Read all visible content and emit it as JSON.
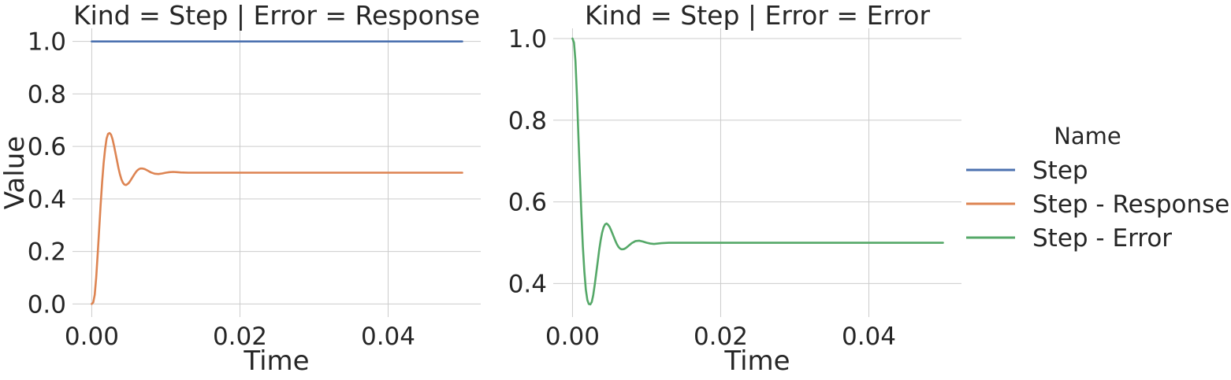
{
  "chart_data": [
    {
      "type": "line",
      "title": "Kind = Step | Error = Response",
      "xlabel": "Time",
      "ylabel": "Value",
      "xlim": [
        -0.0026,
        0.0525
      ],
      "ylim": [
        -0.05,
        1.05
      ],
      "xticks": [
        0.0,
        0.02,
        0.04
      ],
      "xtick_labels": [
        "0.00",
        "0.02",
        "0.04"
      ],
      "yticks": [
        0.0,
        0.2,
        0.4,
        0.6,
        0.8,
        1.0
      ],
      "ytick_labels": [
        "0.0",
        "0.2",
        "0.4",
        "0.6",
        "0.8",
        "1.0"
      ],
      "grid": true,
      "series": [
        {
          "name": "Step",
          "color": "#4c72b0",
          "x": [
            0.0,
            0.05
          ],
          "y": [
            1.0,
            1.0
          ]
        },
        {
          "name": "Step - Response",
          "color": "#dd8452",
          "x": [
            0.0,
            0.0002,
            0.0004,
            0.0006,
            0.0008,
            0.001,
            0.0012,
            0.0014,
            0.0016,
            0.0018,
            0.002,
            0.0022,
            0.0024,
            0.0026,
            0.0028,
            0.003,
            0.0032,
            0.0034,
            0.0036,
            0.0038,
            0.004,
            0.0042,
            0.0044,
            0.0046,
            0.0048,
            0.005,
            0.0052,
            0.0054,
            0.0056,
            0.0058,
            0.006,
            0.0062,
            0.0064,
            0.0066,
            0.0068,
            0.007,
            0.0072,
            0.0074,
            0.0076,
            0.0078,
            0.008,
            0.0085,
            0.009,
            0.0095,
            0.01,
            0.0105,
            0.011,
            0.0115,
            0.012,
            0.013,
            0.014,
            0.015,
            0.016,
            0.018,
            0.02,
            0.025,
            0.03,
            0.035,
            0.04,
            0.045,
            0.05
          ],
          "y": [
            0.0,
            0.006,
            0.035,
            0.101,
            0.19,
            0.284,
            0.379,
            0.464,
            0.536,
            0.59,
            0.63,
            0.648,
            0.651,
            0.645,
            0.628,
            0.603,
            0.575,
            0.547,
            0.518,
            0.494,
            0.475,
            0.462,
            0.455,
            0.453,
            0.456,
            0.461,
            0.469,
            0.478,
            0.487,
            0.496,
            0.504,
            0.51,
            0.514,
            0.516,
            0.516,
            0.515,
            0.513,
            0.51,
            0.507,
            0.504,
            0.501,
            0.496,
            0.495,
            0.497,
            0.5,
            0.502,
            0.503,
            0.502,
            0.501,
            0.5,
            0.5,
            0.5,
            0.5,
            0.5,
            0.5,
            0.5,
            0.5,
            0.5,
            0.5,
            0.5,
            0.5
          ]
        }
      ]
    },
    {
      "type": "line",
      "title": "Kind = Step | Error = Error",
      "xlabel": "Time",
      "ylabel": "",
      "xlim": [
        -0.0026,
        0.0525
      ],
      "ylim": [
        0.318,
        1.025
      ],
      "xticks": [
        0.0,
        0.02,
        0.04
      ],
      "xtick_labels": [
        "0.00",
        "0.02",
        "0.04"
      ],
      "yticks": [
        0.4,
        0.6,
        0.8,
        1.0
      ],
      "ytick_labels": [
        "0.4",
        "0.6",
        "0.8",
        "1.0"
      ],
      "grid": true,
      "series": [
        {
          "name": "Step - Error",
          "color": "#55a868",
          "x": [
            0.0,
            0.0002,
            0.0004,
            0.0006,
            0.0008,
            0.001,
            0.0012,
            0.0014,
            0.0016,
            0.0018,
            0.002,
            0.0022,
            0.0024,
            0.0026,
            0.0028,
            0.003,
            0.0032,
            0.0034,
            0.0036,
            0.0038,
            0.004,
            0.0042,
            0.0044,
            0.0046,
            0.0048,
            0.005,
            0.0052,
            0.0054,
            0.0056,
            0.0058,
            0.006,
            0.0062,
            0.0064,
            0.0066,
            0.0068,
            0.007,
            0.0072,
            0.0074,
            0.0076,
            0.0078,
            0.008,
            0.0085,
            0.009,
            0.0095,
            0.01,
            0.0105,
            0.011,
            0.0115,
            0.012,
            0.013,
            0.014,
            0.015,
            0.016,
            0.018,
            0.02,
            0.025,
            0.03,
            0.035,
            0.04,
            0.045,
            0.05
          ],
          "y": [
            1.0,
            0.99,
            0.945,
            0.86,
            0.76,
            0.665,
            0.57,
            0.49,
            0.43,
            0.385,
            0.36,
            0.35,
            0.349,
            0.355,
            0.372,
            0.397,
            0.425,
            0.453,
            0.482,
            0.506,
            0.525,
            0.538,
            0.545,
            0.547,
            0.544,
            0.539,
            0.531,
            0.522,
            0.513,
            0.504,
            0.496,
            0.49,
            0.486,
            0.484,
            0.484,
            0.485,
            0.487,
            0.49,
            0.493,
            0.496,
            0.499,
            0.504,
            0.505,
            0.503,
            0.5,
            0.498,
            0.497,
            0.498,
            0.499,
            0.5,
            0.5,
            0.5,
            0.5,
            0.5,
            0.5,
            0.5,
            0.5,
            0.5,
            0.5,
            0.5,
            0.5
          ]
        }
      ]
    }
  ],
  "legend": {
    "title": "Name",
    "placement": "right",
    "entries": [
      {
        "label": "Step",
        "color": "#4c72b0"
      },
      {
        "label": "Step - Response",
        "color": "#dd8452"
      },
      {
        "label": "Step - Error",
        "color": "#55a868"
      }
    ]
  }
}
